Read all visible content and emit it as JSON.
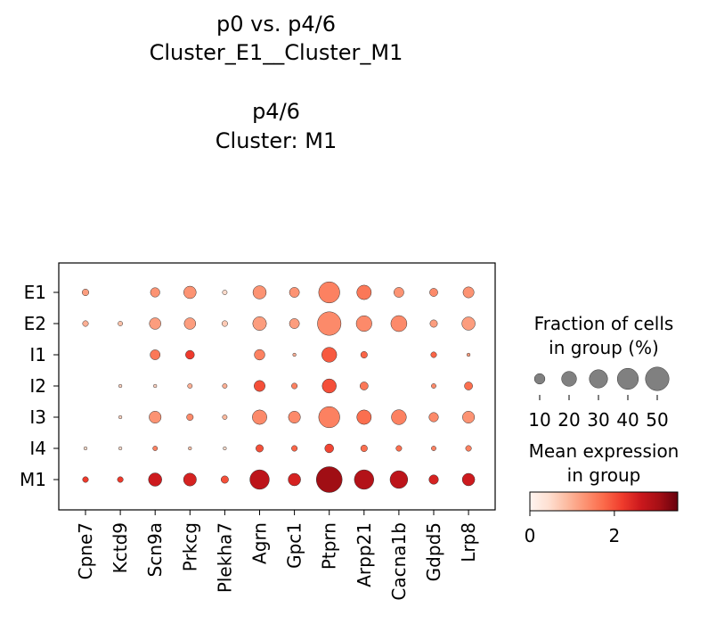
{
  "title_lines": [
    "p0 vs. p4/6",
    "Cluster_E1__Cluster_M1",
    "",
    "p4/6",
    "Cluster: M1"
  ],
  "chart_data": {
    "type": "dotplot",
    "genes": [
      "Cpne7",
      "Kctd9",
      "Scn9a",
      "Prkcg",
      "Plekha7",
      "Agrn",
      "Gpc1",
      "Ptprn",
      "Arpp21",
      "Cacna1b",
      "Gdpd5",
      "Lrp8"
    ],
    "groups": [
      "E1",
      "E2",
      "I1",
      "I2",
      "I3",
      "I4",
      "M1"
    ],
    "fraction_pct": [
      [
        4,
        0,
        8,
        14,
        2,
        16,
        9,
        40,
        19,
        9,
        6,
        11
      ],
      [
        3,
        2,
        12,
        12,
        3,
        17,
        9,
        50,
        22,
        23,
        5,
        16
      ],
      [
        0,
        0,
        9,
        7,
        0,
        10,
        1,
        20,
        4,
        0,
        3,
        1
      ],
      [
        0,
        1,
        1,
        2,
        2,
        11,
        3,
        18,
        6,
        0,
        2,
        6
      ],
      [
        0,
        1,
        13,
        4,
        2,
        19,
        13,
        40,
        19,
        20,
        8,
        13
      ],
      [
        1,
        1,
        2,
        1,
        1,
        5,
        3,
        7,
        4,
        3,
        2,
        3
      ],
      [
        3,
        3,
        16,
        15,
        5,
        34,
        14,
        60,
        34,
        28,
        8,
        14
      ]
    ],
    "mean_expression": [
      [
        1.2,
        0.0,
        1.3,
        1.3,
        0.5,
        1.3,
        1.3,
        1.5,
        1.6,
        1.3,
        1.4,
        1.3
      ],
      [
        1.0,
        0.8,
        1.2,
        1.2,
        0.7,
        1.2,
        1.2,
        1.4,
        1.4,
        1.4,
        1.2,
        1.2
      ],
      [
        0.0,
        0.0,
        1.6,
        2.2,
        0.0,
        1.5,
        1.0,
        1.9,
        1.8,
        0.0,
        1.8,
        1.2
      ],
      [
        0.0,
        0.6,
        0.6,
        1.0,
        1.0,
        2.0,
        1.5,
        2.0,
        1.6,
        0.0,
        1.4,
        1.7
      ],
      [
        0.0,
        0.6,
        1.3,
        1.4,
        0.9,
        1.4,
        1.4,
        1.5,
        1.7,
        1.5,
        1.4,
        1.3
      ],
      [
        0.5,
        0.5,
        1.5,
        0.8,
        0.5,
        2.0,
        1.8,
        2.1,
        1.7,
        1.7,
        1.5,
        1.5
      ],
      [
        2.2,
        2.2,
        2.6,
        2.5,
        2.0,
        2.8,
        2.5,
        3.1,
        2.9,
        2.8,
        2.5,
        2.6
      ]
    ],
    "size_legend": {
      "title_lines": [
        "Fraction of cells",
        "in group (%)"
      ],
      "values": [
        10,
        20,
        30,
        40,
        50
      ],
      "tick_labels": [
        "10",
        "20",
        "30",
        "40",
        "50"
      ],
      "dot_color": "#808080"
    },
    "color_legend": {
      "title_lines": [
        "Mean expression",
        "in group"
      ],
      "colormap": "Reds",
      "range": [
        0,
        3.5
      ],
      "ticks": [
        0,
        2
      ],
      "tick_labels": [
        "0",
        "2"
      ]
    },
    "size_range": [
      0,
      60
    ]
  }
}
